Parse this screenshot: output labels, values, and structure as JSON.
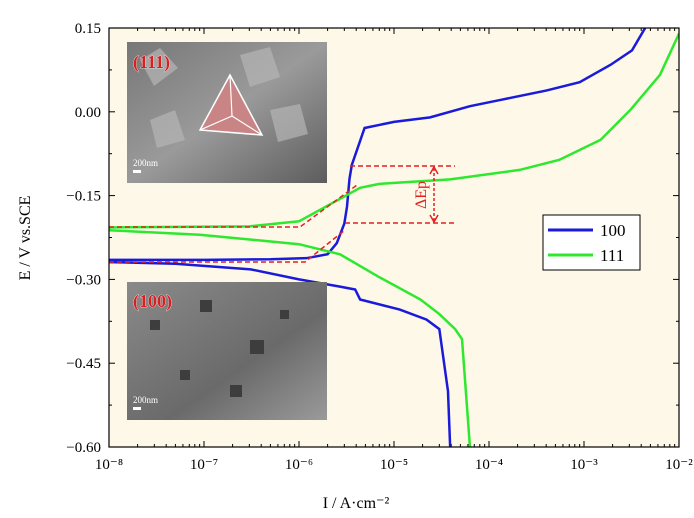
{
  "chart_data": {
    "type": "line",
    "xlabel": "I / A·cm⁻²",
    "ylabel": "E / V vs.SCE",
    "xscale": "log",
    "xlim": [
      1e-08,
      0.01
    ],
    "ylim": [
      -0.6,
      0.15
    ],
    "xticks": [
      {
        "value": 1e-08,
        "label": "10⁻⁸"
      },
      {
        "value": 1e-07,
        "label": "10⁻⁷"
      },
      {
        "value": 1e-06,
        "label": "10⁻⁶"
      },
      {
        "value": 1e-05,
        "label": "10⁻⁵"
      },
      {
        "value": 0.0001,
        "label": "10⁻⁴"
      },
      {
        "value": 0.001,
        "label": "10⁻³"
      },
      {
        "value": 0.01,
        "label": "10⁻²"
      }
    ],
    "yticks": [
      0.15,
      {
        "value": 0,
        "label": "0.00"
      },
      {
        "value": -0.15,
        "label": "−0.15"
      },
      {
        "value": -0.3,
        "label": "−0.30"
      },
      {
        "value": -0.45,
        "label": "−0.45"
      },
      {
        "value": -0.6,
        "label": "−0.60"
      }
    ],
    "legend": "right",
    "background": "#fdf8e8",
    "annotations": [
      "ΔEp",
      "(111)",
      "(100)",
      "200nm",
      "200nm"
    ],
    "series": [
      {
        "name": "100",
        "color": "#1a1adb",
        "x": [
          3.9e-05,
          3.7e-05,
          3e-05,
          2.2e-05,
          1.15e-05,
          4.4e-06,
          3.9e-06,
          2.7e-06,
          1e-06,
          3.1e-07,
          5e-08,
          1e-08,
          1e-08,
          1e-07,
          5e-07,
          1.2e-06,
          2e-06,
          2.5e-06,
          3e-06,
          3.2e-06,
          3.4e-06,
          3.6e-06,
          4.9e-06,
          1e-05,
          2.4e-05,
          6.3e-05,
          0.00013,
          0.0004,
          0.0009,
          0.0019,
          0.0032,
          0.0044
        ],
        "values": [
          -0.6,
          -0.5,
          -0.389,
          -0.372,
          -0.354,
          -0.336,
          -0.318,
          -0.313,
          -0.3,
          -0.282,
          -0.272,
          -0.269,
          -0.265,
          -0.265,
          -0.264,
          -0.262,
          -0.255,
          -0.235,
          -0.2,
          -0.17,
          -0.12,
          -0.095,
          -0.029,
          -0.018,
          -0.01,
          0.01,
          0.021,
          0.038,
          0.053,
          0.084,
          0.11,
          0.15
        ]
      },
      {
        "name": "111",
        "color": "#2ee82e",
        "x": [
          6.3e-05,
          5.2e-05,
          4.4e-05,
          3e-05,
          1.9e-05,
          7e-06,
          2.7e-06,
          1e-06,
          9e-08,
          1e-08,
          1e-08,
          3e-07,
          1e-06,
          2.1e-06,
          4.4e-06,
          7e-06,
          3.9e-05,
          0.00021,
          0.00055,
          0.0015,
          0.0031,
          0.0063,
          0.01
        ],
        "values": [
          -0.6,
          -0.407,
          -0.389,
          -0.362,
          -0.336,
          -0.296,
          -0.255,
          -0.237,
          -0.22,
          -0.212,
          -0.207,
          -0.205,
          -0.196,
          -0.166,
          -0.136,
          -0.129,
          -0.121,
          -0.104,
          -0.086,
          -0.05,
          0.004,
          0.066,
          0.14
        ]
      }
    ]
  }
}
